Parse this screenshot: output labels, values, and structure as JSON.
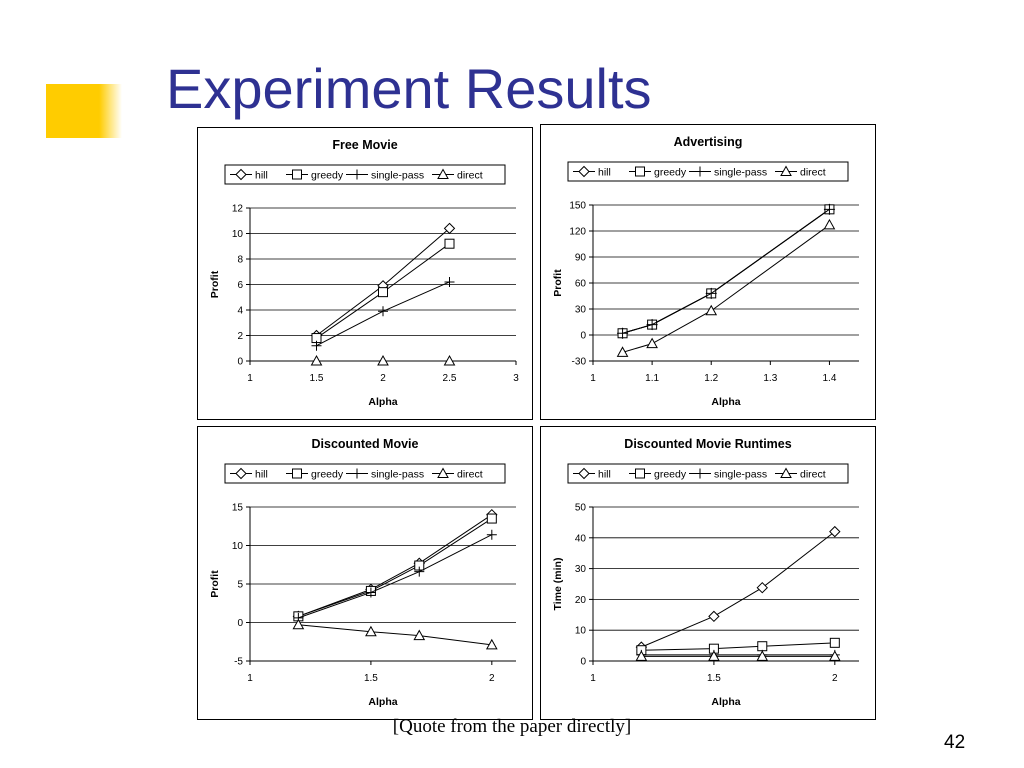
{
  "slide": {
    "title": "Experiment Results",
    "caption": "[Quote from the paper directly]",
    "page_number": "42",
    "accent_color": "#ffcc00",
    "title_color": "#2e3192"
  },
  "chart_data": [
    {
      "type": "line",
      "title": "Free Movie",
      "xlabel": "Alpha",
      "ylabel": "Profit",
      "xlim": [
        1,
        3
      ],
      "ylim": [
        0,
        12
      ],
      "xticks": [
        1,
        1.5,
        2,
        2.5,
        3
      ],
      "xtick_labels": [
        "1",
        "1.5",
        "2",
        "2.5",
        "3"
      ],
      "yticks": [
        0,
        2,
        4,
        6,
        8,
        10,
        12
      ],
      "ytick_labels": [
        "0",
        "2",
        "4",
        "6",
        "8",
        "10",
        "12"
      ],
      "grid": true,
      "legend": "top",
      "series": [
        {
          "name": "hill",
          "marker": "diamond",
          "x": [
            1.5,
            2,
            2.5
          ],
          "y": [
            2,
            5.9,
            10.4
          ]
        },
        {
          "name": "greedy",
          "marker": "square",
          "x": [
            1.5,
            2,
            2.5
          ],
          "y": [
            1.8,
            5.4,
            9.2
          ]
        },
        {
          "name": "single-pass",
          "marker": "plus",
          "x": [
            1.5,
            2,
            2.5
          ],
          "y": [
            1.2,
            3.9,
            6.2
          ]
        },
        {
          "name": "direct",
          "marker": "triangle",
          "x": [
            1.5,
            2,
            2.5
          ],
          "y": [
            0,
            0,
            0
          ]
        }
      ]
    },
    {
      "type": "line",
      "title": "Advertising",
      "xlabel": "Alpha",
      "ylabel": "Profit",
      "xlim": [
        1,
        1.45
      ],
      "ylim": [
        -30,
        150
      ],
      "xticks": [
        1,
        1.1,
        1.2,
        1.3,
        1.4
      ],
      "xtick_labels": [
        "1",
        "1.1",
        "1.2",
        "1.3",
        "1.4"
      ],
      "yticks": [
        -30,
        0,
        30,
        60,
        90,
        120,
        150
      ],
      "ytick_labels": [
        "-30",
        "0",
        "30",
        "60",
        "90",
        "120",
        "150"
      ],
      "grid": true,
      "legend": "top",
      "series": [
        {
          "name": "hill",
          "marker": "diamond",
          "x": [
            1.05,
            1.1,
            1.2,
            1.4
          ],
          "y": [
            2,
            12,
            48,
            145
          ]
        },
        {
          "name": "greedy",
          "marker": "square",
          "x": [
            1.05,
            1.1,
            1.2,
            1.4
          ],
          "y": [
            2,
            12,
            48,
            145
          ]
        },
        {
          "name": "single-pass",
          "marker": "plus",
          "x": [
            1.05,
            1.1,
            1.2,
            1.4
          ],
          "y": [
            2,
            12,
            48,
            145
          ]
        },
        {
          "name": "direct",
          "marker": "triangle",
          "x": [
            1.05,
            1.1,
            1.2,
            1.4
          ],
          "y": [
            -20,
            -10,
            28,
            127
          ]
        }
      ]
    },
    {
      "type": "line",
      "title": "Discounted Movie",
      "xlabel": "Alpha",
      "ylabel": "Profit",
      "xlim": [
        1,
        2.1
      ],
      "ylim": [
        -5,
        15
      ],
      "xticks": [
        1,
        1.5,
        2
      ],
      "xtick_labels": [
        "1",
        "1.5",
        "2"
      ],
      "yticks": [
        -5,
        0,
        5,
        10,
        15
      ],
      "ytick_labels": [
        "-5",
        "0",
        "5",
        "10",
        "15"
      ],
      "grid": true,
      "legend": "top",
      "series": [
        {
          "name": "hill",
          "marker": "diamond",
          "x": [
            1.2,
            1.5,
            1.7,
            2
          ],
          "y": [
            0.8,
            4.3,
            7.7,
            14
          ]
        },
        {
          "name": "greedy",
          "marker": "square",
          "x": [
            1.2,
            1.5,
            1.7,
            2
          ],
          "y": [
            0.8,
            4.1,
            7.4,
            13.5
          ]
        },
        {
          "name": "single-pass",
          "marker": "plus",
          "x": [
            1.2,
            1.5,
            1.7,
            2
          ],
          "y": [
            0.6,
            3.9,
            6.6,
            11.4
          ]
        },
        {
          "name": "direct",
          "marker": "triangle",
          "x": [
            1.2,
            1.5,
            1.7,
            2
          ],
          "y": [
            -0.3,
            -1.2,
            -1.7,
            -2.9
          ]
        }
      ]
    },
    {
      "type": "line",
      "title": "Discounted Movie Runtimes",
      "xlabel": "Alpha",
      "ylabel": "Time (min)",
      "xlim": [
        1,
        2.1
      ],
      "ylim": [
        0,
        50
      ],
      "xticks": [
        1,
        1.5,
        2
      ],
      "xtick_labels": [
        "1",
        "1.5",
        "2"
      ],
      "yticks": [
        0,
        10,
        20,
        30,
        40,
        50
      ],
      "ytick_labels": [
        "0",
        "10",
        "20",
        "30",
        "40",
        "50"
      ],
      "grid": true,
      "legend": "top",
      "series": [
        {
          "name": "hill",
          "marker": "diamond",
          "x": [
            1.2,
            1.5,
            1.7,
            2
          ],
          "y": [
            4.5,
            14.5,
            23.8,
            42
          ]
        },
        {
          "name": "greedy",
          "marker": "square",
          "x": [
            1.2,
            1.5,
            1.7,
            2
          ],
          "y": [
            3.5,
            4,
            4.8,
            5.9
          ]
        },
        {
          "name": "single-pass",
          "marker": "plus",
          "x": [
            1.2,
            1.5,
            1.7,
            2
          ],
          "y": [
            2,
            2,
            2,
            2
          ]
        },
        {
          "name": "direct",
          "marker": "triangle",
          "x": [
            1.2,
            1.5,
            1.7,
            2
          ],
          "y": [
            1.5,
            1.5,
            1.5,
            1.5
          ]
        }
      ]
    }
  ]
}
